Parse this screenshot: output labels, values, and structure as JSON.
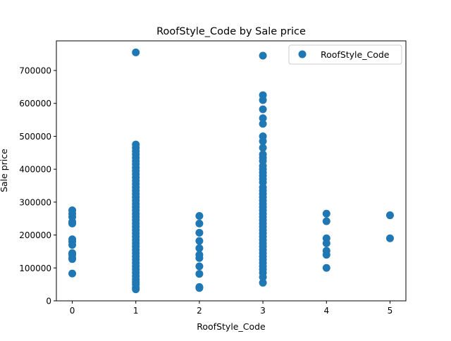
{
  "chart_data": {
    "type": "scatter",
    "title": "RoofStyle_Code by Sale price",
    "xlabel": "RoofStyle_Code",
    "ylabel": "Sale price",
    "xlim": [
      -0.25,
      5.25
    ],
    "ylim": [
      0,
      790000
    ],
    "xticks": [
      0,
      1,
      2,
      3,
      4,
      5
    ],
    "xtick_labels": [
      "0",
      "1",
      "2",
      "3",
      "4",
      "5"
    ],
    "yticks": [
      0,
      100000,
      200000,
      300000,
      400000,
      500000,
      600000,
      700000
    ],
    "ytick_labels": [
      "0",
      "100000",
      "200000",
      "300000",
      "400000",
      "500000",
      "600000",
      "700000"
    ],
    "grid": false,
    "legend": {
      "position": "top-right",
      "entries": [
        "RoofStyle_Code"
      ]
    },
    "color": "#1f77b4",
    "series": [
      {
        "name": "RoofStyle_Code",
        "points": [
          [
            0,
            275000
          ],
          [
            0,
            265000
          ],
          [
            0,
            255000
          ],
          [
            0,
            240000
          ],
          [
            0,
            235000
          ],
          [
            0,
            187000
          ],
          [
            0,
            180000
          ],
          [
            0,
            170000
          ],
          [
            0,
            145000
          ],
          [
            0,
            140000
          ],
          [
            0,
            130000
          ],
          [
            0,
            127000
          ],
          [
            0,
            83000
          ],
          [
            1,
            755000
          ],
          [
            1,
            475000
          ],
          [
            1,
            465000
          ],
          [
            1,
            455000
          ],
          [
            1,
            445000
          ],
          [
            1,
            435000
          ],
          [
            1,
            425000
          ],
          [
            1,
            415000
          ],
          [
            1,
            405000
          ],
          [
            1,
            395000
          ],
          [
            1,
            385000
          ],
          [
            1,
            375000
          ],
          [
            1,
            365000
          ],
          [
            1,
            355000
          ],
          [
            1,
            345000
          ],
          [
            1,
            335000
          ],
          [
            1,
            325000
          ],
          [
            1,
            315000
          ],
          [
            1,
            305000
          ],
          [
            1,
            295000
          ],
          [
            1,
            285000
          ],
          [
            1,
            275000
          ],
          [
            1,
            265000
          ],
          [
            1,
            255000
          ],
          [
            1,
            245000
          ],
          [
            1,
            235000
          ],
          [
            1,
            225000
          ],
          [
            1,
            215000
          ],
          [
            1,
            205000
          ],
          [
            1,
            195000
          ],
          [
            1,
            185000
          ],
          [
            1,
            175000
          ],
          [
            1,
            165000
          ],
          [
            1,
            155000
          ],
          [
            1,
            145000
          ],
          [
            1,
            135000
          ],
          [
            1,
            125000
          ],
          [
            1,
            115000
          ],
          [
            1,
            105000
          ],
          [
            1,
            95000
          ],
          [
            1,
            85000
          ],
          [
            1,
            75000
          ],
          [
            1,
            65000
          ],
          [
            1,
            57000
          ],
          [
            1,
            50000
          ],
          [
            1,
            40000
          ],
          [
            1,
            35000
          ],
          [
            2,
            258000
          ],
          [
            2,
            235000
          ],
          [
            2,
            207000
          ],
          [
            2,
            182000
          ],
          [
            2,
            160000
          ],
          [
            2,
            140000
          ],
          [
            2,
            130000
          ],
          [
            2,
            105000
          ],
          [
            2,
            82000
          ],
          [
            2,
            42000
          ],
          [
            2,
            39000
          ],
          [
            3,
            745000
          ],
          [
            3,
            625000
          ],
          [
            3,
            610000
          ],
          [
            3,
            582000
          ],
          [
            3,
            555000
          ],
          [
            3,
            538000
          ],
          [
            3,
            500000
          ],
          [
            3,
            485000
          ],
          [
            3,
            465000
          ],
          [
            3,
            445000
          ],
          [
            3,
            435000
          ],
          [
            3,
            425000
          ],
          [
            3,
            410000
          ],
          [
            3,
            400000
          ],
          [
            3,
            390000
          ],
          [
            3,
            380000
          ],
          [
            3,
            370000
          ],
          [
            3,
            360000
          ],
          [
            3,
            345000
          ],
          [
            3,
            335000
          ],
          [
            3,
            325000
          ],
          [
            3,
            315000
          ],
          [
            3,
            305000
          ],
          [
            3,
            295000
          ],
          [
            3,
            285000
          ],
          [
            3,
            275000
          ],
          [
            3,
            265000
          ],
          [
            3,
            255000
          ],
          [
            3,
            245000
          ],
          [
            3,
            235000
          ],
          [
            3,
            225000
          ],
          [
            3,
            215000
          ],
          [
            3,
            205000
          ],
          [
            3,
            195000
          ],
          [
            3,
            185000
          ],
          [
            3,
            175000
          ],
          [
            3,
            165000
          ],
          [
            3,
            155000
          ],
          [
            3,
            145000
          ],
          [
            3,
            135000
          ],
          [
            3,
            125000
          ],
          [
            3,
            115000
          ],
          [
            3,
            105000
          ],
          [
            3,
            95000
          ],
          [
            3,
            85000
          ],
          [
            3,
            72000
          ],
          [
            3,
            55000
          ],
          [
            4,
            265000
          ],
          [
            4,
            242000
          ],
          [
            4,
            190000
          ],
          [
            4,
            175000
          ],
          [
            4,
            152000
          ],
          [
            4,
            140000
          ],
          [
            4,
            100000
          ],
          [
            5,
            260000
          ],
          [
            5,
            190000
          ]
        ]
      }
    ]
  }
}
